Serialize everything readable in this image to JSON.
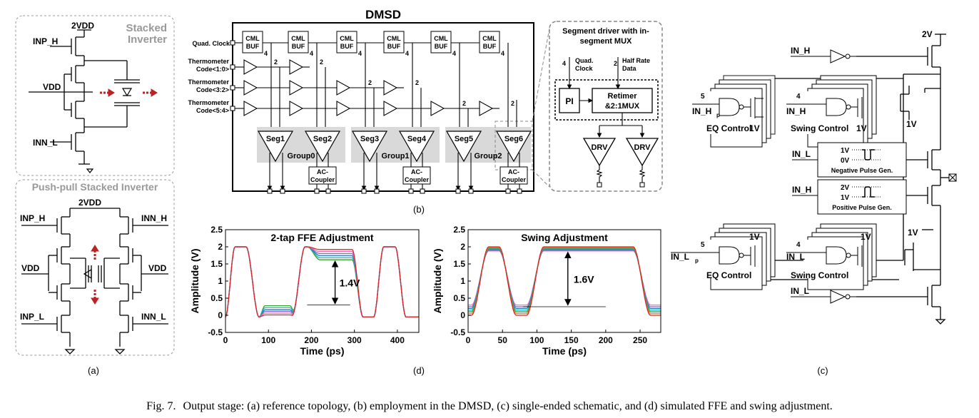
{
  "panel_a": {
    "stacked_title_1": "Stacked",
    "stacked_title_2": "Inverter",
    "pp_title": "Push-pull Stacked Inverter",
    "top_2vdd": "2VDD",
    "inp_h": "INP_H",
    "vdd": "VDD",
    "inn_l": "INN_L",
    "pp_2vdd": "2VDD",
    "pp_inp_h": "INP_H",
    "pp_inn_h": "INN_H",
    "pp_vdd_left": "VDD",
    "pp_vdd_right": "VDD",
    "pp_inp_l": "INP_L",
    "pp_inn_l": "INN_L",
    "caption": "(a)"
  },
  "panel_b": {
    "title": "DMSD",
    "quad_clock": "Quad. Clock",
    "thermo_lines": [
      [
        "Thermometer",
        "Code<1:0>"
      ],
      [
        "Thermometer",
        "Code<3:2>"
      ],
      [
        "Thermometer",
        "Code<5:4>"
      ]
    ],
    "cml_line1": "CML",
    "cml_line2": "BUF",
    "bus4": "4",
    "bus2": "2",
    "segments": [
      "Seg1",
      "Seg2",
      "Seg3",
      "Seg4",
      "Seg5",
      "Seg6"
    ],
    "groups": [
      "Group0",
      "Group1",
      "Group2"
    ],
    "ac_line1": "AC-",
    "ac_line2": "Coupler",
    "inset_title_1": "Segment driver with in-",
    "inset_title_2": "segment MUX",
    "inset_quad_1": "Quad.",
    "inset_quad_2": "Clock",
    "inset_half_1": "Half Rate",
    "inset_half_2": "Data",
    "pi": "PI",
    "retimer_1": "Retimer",
    "retimer_2": "&2:1MUX",
    "drv": "DRV",
    "caption": "(b)"
  },
  "panel_c": {
    "v2": "2V",
    "in_h": "IN_H",
    "in_hp": "IN_H",
    "in_hp_sub": "p",
    "in_h2": "IN_H",
    "eq_control": "EQ Control",
    "swing_control": "Swing Control",
    "v1": "1V",
    "bus5": "5",
    "bus4": "4",
    "in_l": "IN_L",
    "neg_1v": "1V",
    "neg_0v": "0V",
    "neg_label": "Negative Pulse Gen.",
    "in_h3": "IN_H",
    "pos_2v": "2V",
    "pos_1v": "1V",
    "pos_label": "Positive Pulse Gen.",
    "in_lp": "IN_L",
    "in_lp_sub": "p",
    "in_l2": "IN_L",
    "in_l3": "IN_L",
    "caption": "(c)"
  },
  "panel_d": {
    "caption": "(d)"
  },
  "caption": {
    "label": "Fig. 7.",
    "text": "Output stage: (a) reference topology, (b) employment in the DMSD, (c) single-ended schematic, and (d) simulated FFE and swing adjustment."
  },
  "chart_data": [
    {
      "type": "line",
      "title": "2-tap FFE Adjustment",
      "xlabel": "Time (ps)",
      "ylabel": "Amplitude (V)",
      "xlim": [
        0,
        450
      ],
      "ylim": [
        -0.5,
        2.5
      ],
      "xticks": [
        0,
        100,
        200,
        300,
        400
      ],
      "yticks": [
        -0.5,
        0,
        0.5,
        1,
        1.5,
        2,
        2.5
      ],
      "annotation": "1.4V",
      "series": [
        {
          "color": "#2ca02c",
          "low": 0.28,
          "high": 1.62
        },
        {
          "color": "#17becf",
          "low": 0.22,
          "high": 1.68
        },
        {
          "color": "#1f77b4",
          "low": 0.16,
          "high": 1.74
        },
        {
          "color": "#9467bd",
          "low": 0.11,
          "high": 1.8
        },
        {
          "color": "#e377c2",
          "low": 0.06,
          "high": 1.86
        },
        {
          "color": "#d62728",
          "low": 0.01,
          "high": 1.92
        }
      ]
    },
    {
      "type": "line",
      "title": "Swing Adjustment",
      "xlabel": "Time (ps)",
      "ylabel": "Amplitude (V)",
      "xlim": [
        0,
        280
      ],
      "ylim": [
        -0.5,
        2.5
      ],
      "xticks": [
        0,
        50,
        100,
        150,
        200,
        250
      ],
      "yticks": [
        -0.5,
        0,
        0.5,
        1,
        1.5,
        2,
        2.5
      ],
      "annotation": "1.6V",
      "series": [
        {
          "color": "#e377c2",
          "low": 0.3,
          "high": 1.88
        },
        {
          "color": "#9467bd",
          "low": 0.25,
          "high": 1.9
        },
        {
          "color": "#1f77b4",
          "low": 0.2,
          "high": 1.92
        },
        {
          "color": "#17becf",
          "low": 0.15,
          "high": 1.94
        },
        {
          "color": "#2ca02c",
          "low": 0.1,
          "high": 1.96
        },
        {
          "color": "#ff7f0e",
          "low": 0.05,
          "high": 1.98
        },
        {
          "color": "#d62728",
          "low": 0.0,
          "high": 2.0
        }
      ]
    }
  ]
}
